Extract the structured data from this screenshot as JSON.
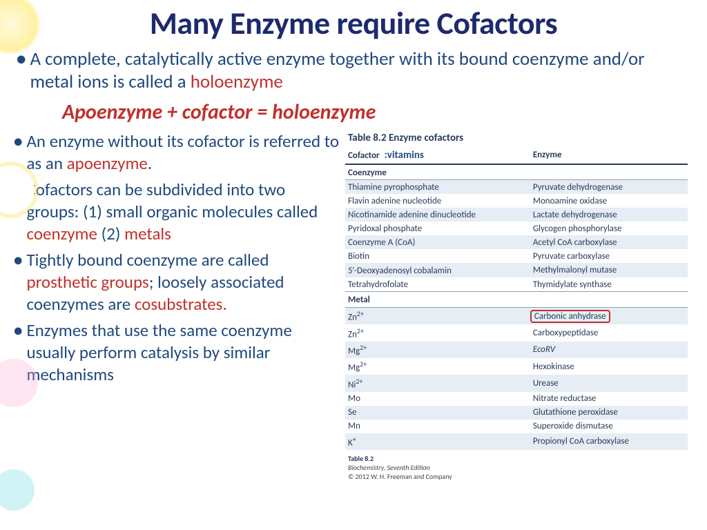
{
  "title": "Many Enzyme require Cofactors",
  "colors": {
    "title": "#1d2a6e",
    "body_blue": "#1f497d",
    "accent_red": "#c0302b",
    "table_header": "#283a5a",
    "row_alt_bg": "#e6edf4",
    "highlight_border": "#c0302b",
    "background": "#ffffff"
  },
  "typography": {
    "title_fontsize": 46,
    "bullet_fontsize_top": 27,
    "bullet_fontsize_side": 25,
    "equation_fontsize": 30,
    "table_fontsize": 13,
    "footer_fontsize": 10
  },
  "top_bullet": {
    "pre": "A complete, catalytically active enzyme together with its bound coenzyme and/or metal ions is called a ",
    "highlight": "holoenzyme"
  },
  "equation": "Apoenzyme + cofactor = holoenzyme",
  "side_bullets": [
    {
      "parts": [
        {
          "t": "An enzyme without its cofactor is referred to as an "
        },
        {
          "t": "apoenzyme",
          "red": true
        },
        {
          "t": "."
        }
      ]
    },
    {
      "parts": [
        {
          "t": "Cofactors can be subdivided into two groups: (1) small organic molecules called "
        },
        {
          "t": "coenzyme",
          "red": true
        },
        {
          "t": " (2) "
        },
        {
          "t": "metals",
          "red": true
        }
      ]
    },
    {
      "parts": [
        {
          "t": "Tightly bound coenzyme are called "
        },
        {
          "t": "prosthetic groups",
          "red": true
        },
        {
          "t": "; loosely associated coenzymes are "
        },
        {
          "t": "cosubstrates.",
          "red": true
        }
      ]
    },
    {
      "parts": [
        {
          "t": "Enzymes that use the same coenzyme usually perform catalysis by similar mechanisms"
        }
      ]
    }
  ],
  "table": {
    "title": "Table 8.2  Enzyme cofactors",
    "header_note": ":vitamins",
    "columns": [
      "Cofactor",
      "Enzyme"
    ],
    "col_widths_pct": [
      54,
      46
    ],
    "sections": [
      {
        "name": "Coenzyme",
        "rows": [
          [
            "Thiamine pyrophosphate",
            "Pyruvate dehydrogenase"
          ],
          [
            "Flavin adenine nucleotide",
            "Monoamine oxidase"
          ],
          [
            "Nicotinamide adenine dinucleotide",
            "Lactate dehydrogenase"
          ],
          [
            "Pyridoxal phosphate",
            "Glycogen phosphorylase"
          ],
          [
            "Coenzyme A (CoA)",
            "Acetyl CoA carboxylase"
          ],
          [
            "Biotin",
            "Pyruvate carboxylase"
          ],
          [
            "5′-Deoxyadenosyl cobalamin",
            "Methylmalonyl mutase"
          ],
          [
            "Tetrahydrofolate",
            "Thymidylate synthase"
          ]
        ]
      },
      {
        "name": "Metal",
        "rows": [
          [
            "Zn²⁺",
            "Carbonic anhydrase"
          ],
          [
            "Zn²⁺",
            "Carboxypeptidase"
          ],
          [
            "Mg²⁺",
            "EcoRV"
          ],
          [
            "Mg²⁺",
            "Hexokinase"
          ],
          [
            "Ni²⁺",
            "Urease"
          ],
          [
            "Mo",
            "Nitrate reductase"
          ],
          [
            "Se",
            "Glutathione peroxidase"
          ],
          [
            "Mn",
            "Superoxide dismutase"
          ],
          [
            "K⁺",
            "Propionyl CoA carboxylase"
          ]
        ],
        "highlight_row": 0,
        "italic_enzyme_rows": [
          2
        ]
      }
    ],
    "footer": {
      "line1": "Table 8.2",
      "line2": "Biochemistry, Seventh Edition",
      "line3": "© 2012 W. H. Freeman and Company"
    }
  }
}
